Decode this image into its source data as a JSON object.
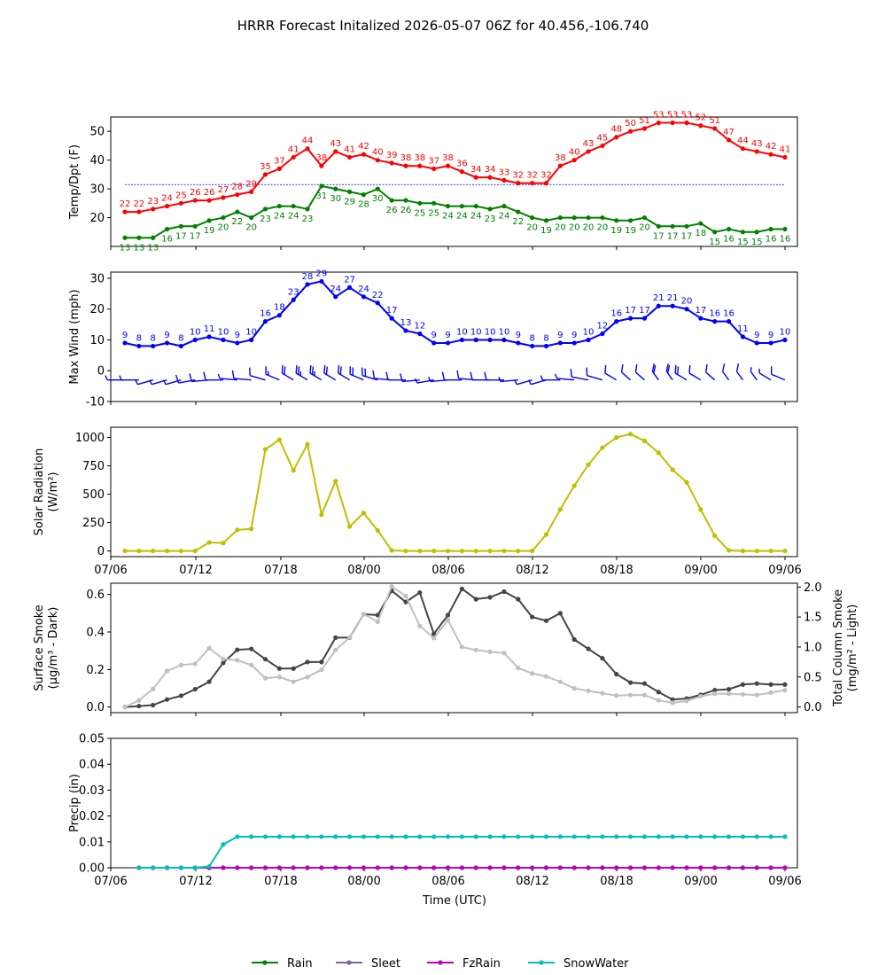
{
  "title": "HRRR Forecast Initalized 2026-05-07 06Z for 40.456,-106.740",
  "time_ticks": [
    "07/06",
    "07/12",
    "07/18",
    "08/00",
    "08/06",
    "08/12",
    "08/18",
    "09/00",
    "09/06"
  ],
  "xlabel": "Time (UTC)",
  "legend": {
    "placement": "bottom-center",
    "items": [
      {
        "name": "Rain",
        "color": "#008000"
      },
      {
        "name": "Sleet",
        "color": "#8064a2"
      },
      {
        "name": "FzRain",
        "color": "#bf00bf"
      },
      {
        "name": "SnowWater",
        "color": "#00bfbf"
      }
    ]
  },
  "chart_data": [
    {
      "type": "line",
      "ylabel": "Temp/Dpt (F)",
      "ylim": [
        10,
        55
      ],
      "yticks": [
        20,
        30,
        40,
        50
      ],
      "reference_line": {
        "y": 31.5,
        "color": "#0000ff"
      },
      "series": [
        {
          "color": "#ff0000",
          "values": [
            22,
            22,
            23,
            24,
            25,
            26,
            26,
            27,
            28,
            29,
            35,
            37,
            41,
            44,
            38,
            43,
            41,
            42,
            40,
            39,
            38,
            38,
            37,
            38,
            36,
            34,
            34,
            33,
            32,
            32,
            32,
            38,
            40,
            43,
            45,
            48,
            50,
            51,
            53,
            53,
            53,
            52,
            51,
            47,
            44,
            43,
            42,
            41
          ],
          "labels": [
            "22",
            "22",
            "23",
            "24",
            "25",
            "26",
            "26",
            "27",
            "28",
            "29",
            "35",
            "37",
            "41",
            "44",
            "38",
            "43",
            "41",
            "42",
            "40",
            "39",
            "38",
            "38",
            "37",
            "38",
            "36",
            "34",
            "34",
            "33",
            "32",
            "32",
            "32",
            "38",
            "40",
            "43",
            "45",
            "48",
            "50",
            "51",
            "53",
            "53",
            "53",
            "52",
            "51",
            "47",
            "44",
            "43",
            "42",
            "41"
          ]
        },
        {
          "color": "#008000",
          "values": [
            13,
            13,
            13,
            16,
            17,
            17,
            19,
            20,
            22,
            20,
            23,
            24,
            24,
            23,
            31,
            30,
            29,
            28,
            30,
            26,
            26,
            25,
            25,
            24,
            24,
            24,
            23,
            24,
            22,
            20,
            19,
            20,
            20,
            20,
            20,
            19,
            19,
            20,
            17,
            17,
            17,
            18,
            15,
            16,
            15,
            15,
            16,
            16
          ],
          "labels": [
            "13",
            "13",
            "13",
            "16",
            "17",
            "17",
            "19",
            "20",
            "22",
            "20",
            "23",
            "24",
            "24",
            "23",
            "31",
            "30",
            "29",
            "28",
            "30",
            "26",
            "26",
            "25",
            "25",
            "24",
            "24",
            "24",
            "23",
            "24",
            "22",
            "20",
            "19",
            "20",
            "20",
            "20",
            "20",
            "19",
            "19",
            "20",
            "17",
            "17",
            "17",
            "18",
            "15",
            "16",
            "15",
            "15",
            "16",
            "16"
          ]
        }
      ]
    },
    {
      "type": "line",
      "ylabel": "Max Wind (mph)",
      "ylim": [
        -10,
        32
      ],
      "yticks": [
        -10,
        0,
        10,
        20,
        30
      ],
      "series": [
        {
          "color": "#0000ff",
          "values": [
            9,
            8,
            8,
            9,
            8,
            10,
            11,
            10,
            9,
            10,
            16,
            18,
            23,
            28,
            29,
            24,
            27,
            24,
            22,
            17,
            13,
            12,
            9,
            9,
            10,
            10,
            10,
            10,
            9,
            8,
            8,
            9,
            9,
            10,
            12,
            16,
            17,
            17,
            21,
            21,
            20,
            17,
            16,
            16,
            11,
            9,
            9,
            10
          ],
          "labels": [
            "9",
            "8",
            "8",
            "9",
            "8",
            "10",
            "11",
            "10",
            "9",
            "10",
            "16",
            "18",
            "23",
            "28",
            "29",
            "24",
            "27",
            "24",
            "22",
            "17",
            "13",
            "12",
            "9",
            "9",
            "10",
            "10",
            "10",
            "10",
            "9",
            "8",
            "8",
            "9",
            "9",
            "10",
            "12",
            "16",
            "17",
            "17",
            "21",
            "21",
            "20",
            "17",
            "16",
            "16",
            "11",
            "9",
            "9",
            "10"
          ]
        }
      ],
      "wind_barbs": {
        "y": -3,
        "color": "#0000ff",
        "directions_deg": [
          270,
          270,
          240,
          240,
          240,
          250,
          260,
          270,
          280,
          280,
          300,
          310,
          320,
          320,
          320,
          320,
          320,
          310,
          300,
          280,
          270,
          260,
          250,
          260,
          270,
          280,
          270,
          270,
          260,
          240,
          240,
          270,
          280,
          290,
          300,
          320,
          330,
          330,
          340,
          340,
          320,
          320,
          330,
          340,
          340,
          340,
          320,
          310
        ]
      }
    },
    {
      "type": "line",
      "ylabel": "Solar Radiation (W/m²)",
      "ylim": [
        -50,
        1090
      ],
      "yticks": [
        0,
        250,
        500,
        750,
        1000
      ],
      "series": [
        {
          "color": "#bfbf00",
          "values": [
            0,
            0,
            0,
            0,
            0,
            0,
            75,
            70,
            185,
            195,
            895,
            980,
            710,
            940,
            320,
            615,
            215,
            335,
            180,
            5,
            0,
            0,
            0,
            0,
            0,
            0,
            0,
            0,
            0,
            0,
            145,
            365,
            575,
            760,
            910,
            1000,
            1030,
            970,
            865,
            715,
            605,
            365,
            135,
            5,
            0,
            0,
            0,
            0
          ]
        }
      ]
    },
    {
      "type": "line",
      "ylabel": "Surface Smoke (μg/m³ - Dark)",
      "ylabel_right": "Total Column Smoke (mg/m² - Light)",
      "ylim": [
        -0.03,
        0.66
      ],
      "yticks": [
        0.0,
        0.2,
        0.4,
        0.6
      ],
      "ylim_right": [
        -0.094,
        2.063
      ],
      "yticks_right": [
        0.0,
        0.5,
        1.0,
        1.5,
        2.0
      ],
      "series": [
        {
          "color": "#444444",
          "axis": "left",
          "values": [
            0.0,
            0.005,
            0.01,
            0.04,
            0.06,
            0.095,
            0.135,
            0.235,
            0.305,
            0.31,
            0.255,
            0.205,
            0.205,
            0.24,
            0.24,
            0.37,
            0.37,
            0.495,
            0.49,
            0.62,
            0.56,
            0.61,
            0.39,
            0.49,
            0.63,
            0.575,
            0.585,
            0.615,
            0.575,
            0.48,
            0.46,
            0.5,
            0.36,
            0.31,
            0.26,
            0.175,
            0.13,
            0.125,
            0.08,
            0.04,
            0.045,
            0.065,
            0.09,
            0.095,
            0.12,
            0.125,
            0.12,
            0.12
          ]
        },
        {
          "color": "#c0c0c0",
          "axis": "right",
          "values": [
            0.0,
            0.11,
            0.3,
            0.6,
            0.7,
            0.72,
            0.98,
            0.8,
            0.78,
            0.7,
            0.48,
            0.5,
            0.42,
            0.5,
            0.62,
            0.95,
            1.16,
            1.55,
            1.42,
            2.01,
            1.85,
            1.35,
            1.15,
            1.45,
            1.0,
            0.95,
            0.92,
            0.9,
            0.65,
            0.56,
            0.51,
            0.42,
            0.31,
            0.27,
            0.23,
            0.19,
            0.2,
            0.2,
            0.11,
            0.07,
            0.1,
            0.18,
            0.22,
            0.22,
            0.21,
            0.2,
            0.24,
            0.28
          ]
        }
      ]
    },
    {
      "type": "line",
      "ylabel": "Precip (in)",
      "ylim": [
        0,
        0.05
      ],
      "yticks": [
        0.0,
        0.01,
        0.02,
        0.03,
        0.04,
        0.05
      ],
      "series": [
        {
          "name": "Rain",
          "color": "#008000",
          "start_index": 1,
          "values": [
            0,
            0,
            0,
            0,
            0,
            0,
            0,
            0,
            0,
            0,
            0,
            0,
            0,
            0,
            0,
            0,
            0,
            0,
            0,
            0,
            0,
            0,
            0,
            0,
            0,
            0,
            0,
            0,
            0,
            0,
            0,
            0,
            0,
            0,
            0,
            0,
            0,
            0,
            0,
            0,
            0,
            0,
            0,
            0,
            0,
            0,
            0
          ]
        },
        {
          "name": "FzRain",
          "color": "#bf00bf",
          "start_index": 1,
          "values": [
            0,
            0,
            0,
            0,
            0,
            0,
            0,
            0,
            0,
            0,
            0,
            0,
            0,
            0,
            0,
            0,
            0,
            0,
            0,
            0,
            0,
            0,
            0,
            0,
            0,
            0,
            0,
            0,
            0,
            0,
            0,
            0,
            0,
            0,
            0,
            0,
            0,
            0,
            0,
            0,
            0,
            0,
            0,
            0,
            0,
            0,
            0
          ]
        },
        {
          "name": "SnowWater",
          "color": "#00bfbf",
          "start_index": 1,
          "values": [
            0,
            0,
            0,
            0,
            0,
            0.0005,
            0.009,
            0.012,
            0.012,
            0.012,
            0.012,
            0.012,
            0.012,
            0.012,
            0.012,
            0.012,
            0.012,
            0.012,
            0.012,
            0.012,
            0.012,
            0.012,
            0.012,
            0.012,
            0.012,
            0.012,
            0.012,
            0.012,
            0.012,
            0.012,
            0.012,
            0.012,
            0.012,
            0.012,
            0.012,
            0.012,
            0.012,
            0.012,
            0.012,
            0.012,
            0.012,
            0.012,
            0.012,
            0.012,
            0.012,
            0.012,
            0.012
          ]
        }
      ]
    }
  ]
}
